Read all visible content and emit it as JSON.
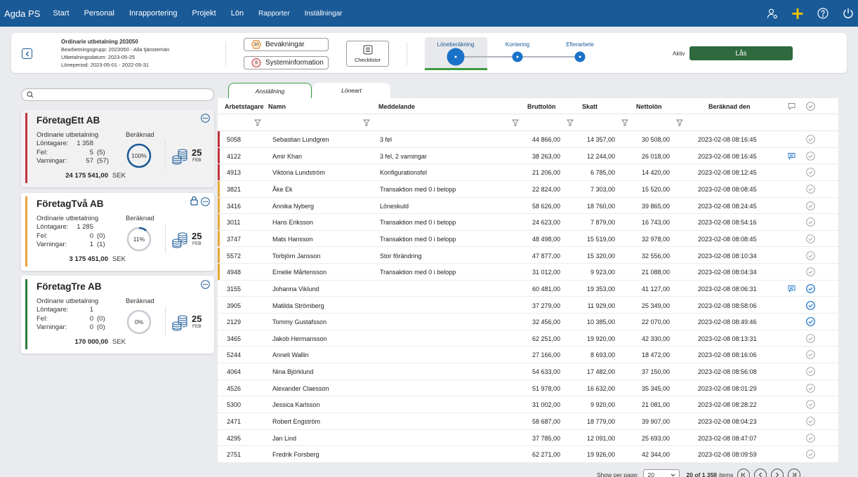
{
  "app": {
    "title": "Agda PS",
    "nav": [
      {
        "label": "Start",
        "small": false
      },
      {
        "label": "Personal",
        "small": false
      },
      {
        "label": "Inrapportering",
        "small": false
      },
      {
        "label": "Projekt",
        "small": false
      },
      {
        "label": "Lön",
        "small": false
      },
      {
        "label": "Rapporter",
        "small": true
      },
      {
        "label": "Inställningar",
        "small": true
      }
    ]
  },
  "header": {
    "run_title": "Ordinarie utbetalning 203050",
    "group": "Bearbetningsgrupp: 2023050 - Alla tjänstemän",
    "pay_date": "Utbetalningsdatum: 2023-05-25",
    "period": "Löneperiod: 2023-05-01 - 2022-05-31",
    "watch_count": "10",
    "watch_label": "Bevakningar",
    "sysinfo_count": "9",
    "sysinfo_label": "Systeminformation",
    "checklist_label": "Checklistor",
    "steps": [
      "Löneberäkning",
      "Kontering",
      "Efterarbete"
    ],
    "aktiv_label": "Aktiv",
    "lock_label": "Lås"
  },
  "search": {
    "placeholder": "",
    "value": ""
  },
  "companies": [
    {
      "name": "FöretagEtt AB",
      "stripe": "#c0343c",
      "run": "Ordinarie utbetalning",
      "labels": [
        "Löntagare:",
        "Fel:",
        "Varningar:"
      ],
      "values": [
        "1 358",
        "5",
        "57"
      ],
      "subs": [
        "",
        "(5)",
        "(57)"
      ],
      "calc_label": "Beräknad",
      "percent": "100%",
      "progress": 1.0,
      "day": "25",
      "month": "FEB",
      "total": "24 175 541,00",
      "currency": "SEK",
      "locked": false
    },
    {
      "name": "FöretagTvå AB",
      "stripe": "#e9a53a",
      "run": "Ordinarie utbetalning",
      "labels": [
        "Löntagare:",
        "Fel:",
        "Varningar:"
      ],
      "values": [
        "1 285",
        "0",
        "1"
      ],
      "subs": [
        "",
        "(0)",
        "(1)"
      ],
      "calc_label": "Beräknad",
      "percent": "11%",
      "progress": 0.11,
      "day": "25",
      "month": "FEB",
      "total": "3 175 451,00",
      "currency": "SEK",
      "locked": true
    },
    {
      "name": "FöretagTre AB",
      "stripe": "#2e7a3e",
      "run": "Ordinarie utbetalning",
      "labels": [
        "Löntagare:",
        "Fel:",
        "Varningar:"
      ],
      "values": [
        "1",
        "0",
        "0"
      ],
      "subs": [
        "",
        "(0)",
        "(0)"
      ],
      "calc_label": "Beräknad",
      "percent": "0%",
      "progress": 0.0,
      "day": "25",
      "month": "FEB",
      "total": "170 000,00",
      "currency": "SEK",
      "locked": false
    }
  ],
  "tabs": [
    "Anställning",
    "Löneart"
  ],
  "table": {
    "headers": [
      "Arbetstagare",
      "Namn",
      "Meddelande",
      "Bruttolön",
      "Skatt",
      "Nettolön",
      "Beräknad den"
    ],
    "rows": [
      {
        "id": "5058",
        "name": "Sebastian Lundgren",
        "msg": "3 fel",
        "brutto": "44 866,00",
        "skatt": "14 357,00",
        "netto": "30 508,00",
        "date": "2023-02-08 08:16:45",
        "status": "error",
        "comment": false,
        "check": "grey"
      },
      {
        "id": "4122",
        "name": "Amir Khan",
        "msg": "3 fel, 2 varningar",
        "brutto": "38 263,00",
        "skatt": "12 244,00",
        "netto": "26 018,00",
        "date": "2023-02-08 08:16:45",
        "status": "error",
        "comment": true,
        "check": "grey"
      },
      {
        "id": "4913",
        "name": "Viktoria Lundström",
        "msg": "Konfigurationsfel",
        "brutto": "21 206,00",
        "skatt": "6 785,00",
        "netto": "14 420,00",
        "date": "2023-02-08 08:12:45",
        "status": "error",
        "comment": false,
        "check": "grey"
      },
      {
        "id": "3821",
        "name": "Åke Ek",
        "msg": "Transaktion med 0 i belopp",
        "brutto": "22 824,00",
        "skatt": "7 303,00",
        "netto": "15 520,00",
        "date": "2023-02-08 08:08:45",
        "status": "warning",
        "comment": false,
        "check": "grey"
      },
      {
        "id": "3416",
        "name": "Annika Nyberg",
        "msg": "Löneskuld",
        "brutto": "58 626,00",
        "skatt": "18 760,00",
        "netto": "39 865,00",
        "date": "2023-02-08 08:24:45",
        "status": "warning",
        "comment": false,
        "check": "grey"
      },
      {
        "id": "3011",
        "name": "Hans Eriksson",
        "msg": "Transaktion med 0 i belopp",
        "brutto": "24 623,00",
        "skatt": "7 879,00",
        "netto": "16 743,00",
        "date": "2023-02-08 08:54:16",
        "status": "warning",
        "comment": false,
        "check": "grey"
      },
      {
        "id": "3747",
        "name": "Mats Hansson",
        "msg": "Transaktion med 0 i belopp",
        "brutto": "48 498,00",
        "skatt": "15 519,00",
        "netto": "32 978,00",
        "date": "2023-02-08 08:08:45",
        "status": "warning",
        "comment": false,
        "check": "grey"
      },
      {
        "id": "5572",
        "name": "Torbjörn Jansson",
        "msg": "Stor förändring",
        "brutto": "47 877,00",
        "skatt": "15 320,00",
        "netto": "32 556,00",
        "date": "2023-02-08 08:10:34",
        "status": "warning",
        "comment": false,
        "check": "grey"
      },
      {
        "id": "4948",
        "name": "Emelie Mårtensson",
        "msg": "Transaktion med 0 i belopp",
        "brutto": "31 012,00",
        "skatt": "9 923,00",
        "netto": "21 088,00",
        "date": "2023-02-08 08:04:34",
        "status": "warning",
        "comment": false,
        "check": "grey"
      },
      {
        "id": "3155",
        "name": "Johanna Viklund",
        "msg": "",
        "brutto": "60 481,00",
        "skatt": "19 353,00",
        "netto": "41 127,00",
        "date": "2023-02-08 08:06:31",
        "status": "",
        "comment": true,
        "check": "blue"
      },
      {
        "id": "3905",
        "name": "Matilda Strömberg",
        "msg": "",
        "brutto": "37 279,00",
        "skatt": "11 929,00",
        "netto": "25 349,00",
        "date": "2023-02-08 08:58:06",
        "status": "",
        "comment": false,
        "check": "blue"
      },
      {
        "id": "2129",
        "name": "Tommy Gustafsson",
        "msg": "",
        "brutto": "32 456,00",
        "skatt": "10 385,00",
        "netto": "22 070,00",
        "date": "2023-02-08 08:49:46",
        "status": "",
        "comment": false,
        "check": "blue"
      },
      {
        "id": "3465",
        "name": "Jakob Hermansson",
        "msg": "",
        "brutto": "62 251,00",
        "skatt": "19 920,00",
        "netto": "42 330,00",
        "date": "2023-02-08 08:13:31",
        "status": "",
        "comment": false,
        "check": "grey"
      },
      {
        "id": "5244",
        "name": "Anneli Wallin",
        "msg": "",
        "brutto": "27 166,00",
        "skatt": "8 693,00",
        "netto": "18 472,00",
        "date": "2023-02-08 08:16:06",
        "status": "",
        "comment": false,
        "check": "grey"
      },
      {
        "id": "4064",
        "name": "Nina Björklund",
        "msg": "",
        "brutto": "54 633,00",
        "skatt": "17 482,00",
        "netto": "37 150,00",
        "date": "2023-02-08 08:56:08",
        "status": "",
        "comment": false,
        "check": "grey"
      },
      {
        "id": "4526",
        "name": "Alexander Claesson",
        "msg": "",
        "brutto": "51 978,00",
        "skatt": "16 632,00",
        "netto": "35 345,00",
        "date": "2023-02-08 08:01:29",
        "status": "",
        "comment": false,
        "check": "grey"
      },
      {
        "id": "5300",
        "name": "Jessica Karlsson",
        "msg": "",
        "brutto": "31 002,00",
        "skatt": "9 920,00",
        "netto": "21 081,00",
        "date": "2023-02-08 08:28:22",
        "status": "",
        "comment": false,
        "check": "grey"
      },
      {
        "id": "2471",
        "name": "Robert Engström",
        "msg": "",
        "brutto": "58 687,00",
        "skatt": "18 779,00",
        "netto": "39 907,00",
        "date": "2023-02-08 08:04:23",
        "status": "",
        "comment": false,
        "check": "grey"
      },
      {
        "id": "4295",
        "name": "Jan Lind",
        "msg": "",
        "brutto": "37 785,00",
        "skatt": "12 091,00",
        "netto": "25 693,00",
        "date": "2023-02-08 08:47:07",
        "status": "",
        "comment": false,
        "check": "grey"
      },
      {
        "id": "2751",
        "name": "Fredrik Forsberg",
        "msg": "",
        "brutto": "62 271,00",
        "skatt": "19 926,00",
        "netto": "42 344,00",
        "date": "2023-02-08 08:09:59",
        "status": "",
        "comment": false,
        "check": "grey"
      }
    ]
  },
  "pagination": {
    "label": "Show per page:",
    "size": "20",
    "summary_range": "20 of 1 358",
    "summary_suffix": "items"
  },
  "colors": {
    "nav": "#1a5a97",
    "error": "#c0343c",
    "warning": "#e9a53a",
    "ok": "#2e7a3e",
    "accent_blue": "#1a72c8",
    "lock_button": "#2e6a3d"
  }
}
